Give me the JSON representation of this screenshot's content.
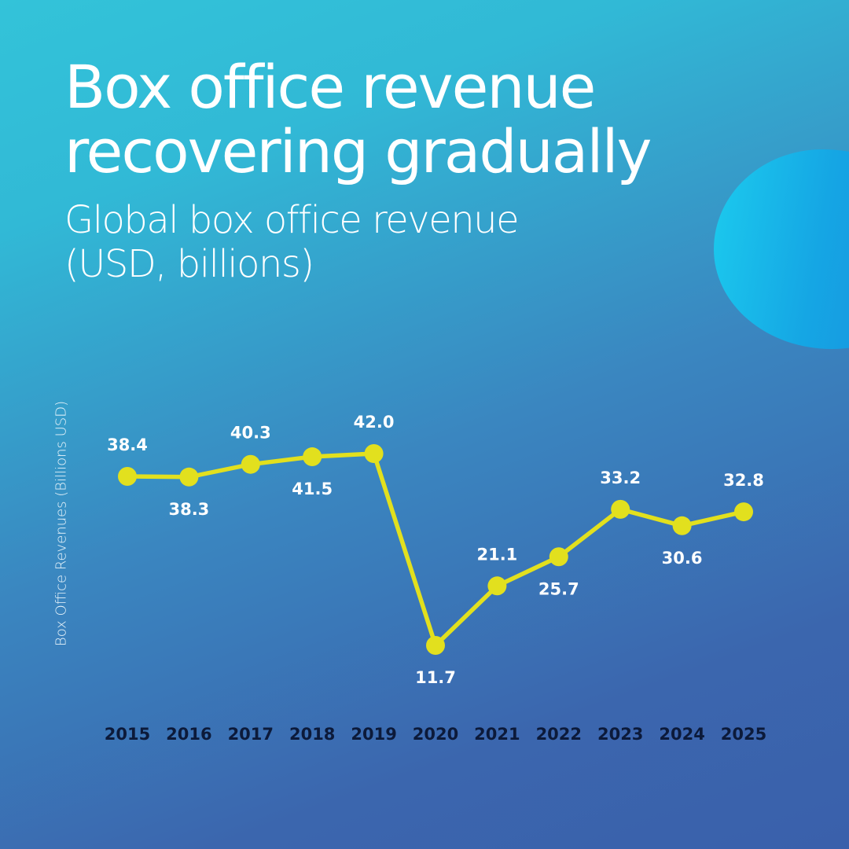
{
  "header": {
    "title": "Box office revenue\nrecovering gradually",
    "subtitle": "Global box office revenue\n(USD, billions)"
  },
  "colors": {
    "line": "#e2e01e",
    "label_text": "#ffffff",
    "axis_text": "#0c1a3a"
  },
  "chart_data": {
    "type": "line",
    "title": "Box office revenue recovering gradually",
    "subtitle": "Global box office revenue (USD, billions)",
    "xlabel": "",
    "ylabel": "Box Office Revenues (Billions USD)",
    "grid": false,
    "legend": "none",
    "categories": [
      "2015",
      "2016",
      "2017",
      "2018",
      "2019",
      "2020",
      "2021",
      "2022",
      "2023",
      "2024",
      "2025"
    ],
    "series": [
      {
        "values": [
          38.4,
          38.3,
          40.3,
          41.5,
          42.0,
          11.7,
          21.1,
          25.7,
          33.2,
          30.6,
          32.8
        ],
        "labels": [
          "38.4",
          "38.3",
          "40.3",
          "41.5",
          "42.0",
          "11.7",
          "21.1",
          "25.7",
          "33.2",
          "30.6",
          "32.8"
        ],
        "label_positions": [
          "above",
          "below",
          "above",
          "below",
          "above",
          "below",
          "above",
          "below",
          "above",
          "below",
          "above"
        ]
      }
    ]
  }
}
